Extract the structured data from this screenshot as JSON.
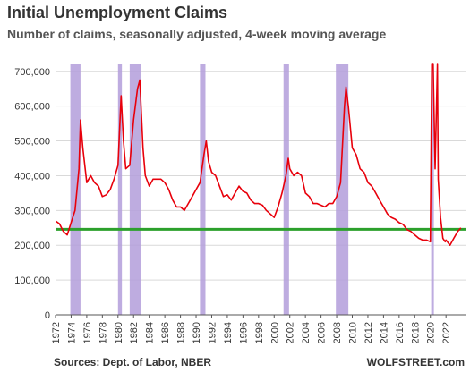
{
  "chart_data": {
    "type": "line",
    "title": "Initial Unemployment Claims",
    "subtitle": "Number of claims, seasonally adjusted, 4-week moving average",
    "source": "Sources: Dept. of Labor, NBER",
    "brand": "WOLFSTREET.com",
    "ylim": [
      0,
      720000
    ],
    "xlim": [
      1972,
      2024.5
    ],
    "y_ticks": [
      0,
      100000,
      200000,
      300000,
      400000,
      500000,
      600000,
      700000
    ],
    "y_tick_labels": [
      "0",
      "100,000",
      "200,000",
      "300,000",
      "400,000",
      "500,000",
      "600,000",
      "700,000"
    ],
    "x_ticks": [
      1972,
      1974,
      1976,
      1978,
      1980,
      1982,
      1984,
      1986,
      1988,
      1990,
      1992,
      1994,
      1996,
      1998,
      2000,
      2002,
      2004,
      2006,
      2008,
      2010,
      2012,
      2014,
      2016,
      2018,
      2020,
      2022
    ],
    "grid": true,
    "colors": {
      "series": "#e8000b",
      "reference": "#2ca02c",
      "recession": "#b39ddb",
      "grid": "#d9d9d9",
      "axis": "#555555"
    },
    "recessions": [
      [
        1973.9,
        1975.2
      ],
      [
        1980.0,
        1980.5
      ],
      [
        1981.5,
        1982.9
      ],
      [
        1990.5,
        1991.2
      ],
      [
        2001.2,
        2001.9
      ],
      [
        2007.9,
        2009.5
      ],
      [
        2020.1,
        2020.3
      ]
    ],
    "reference_line": {
      "y": 246000
    },
    "series": [
      {
        "x": [
          1972,
          1972.5,
          1973,
          1973.5,
          1974,
          1974.5,
          1975,
          1975.2,
          1975.5,
          1976,
          1976.5,
          1977,
          1977.5,
          1978,
          1978.5,
          1979,
          1979.5,
          1980,
          1980.4,
          1980.7,
          1981,
          1981.5,
          1982,
          1982.5,
          1982.8,
          1983.2,
          1983.5,
          1984,
          1984.5,
          1985,
          1985.5,
          1986,
          1986.5,
          1987,
          1987.5,
          1988,
          1988.5,
          1989,
          1989.5,
          1990,
          1990.5,
          1991,
          1991.3,
          1991.6,
          1992,
          1992.5,
          1993,
          1993.5,
          1994,
          1994.5,
          1995,
          1995.5,
          1996,
          1996.5,
          1997,
          1997.5,
          1998,
          1998.5,
          1999,
          1999.5,
          2000,
          2000.5,
          2001,
          2001.5,
          2001.8,
          2002,
          2002.5,
          2003,
          2003.5,
          2004,
          2004.5,
          2005,
          2005.5,
          2006,
          2006.5,
          2007,
          2007.5,
          2008,
          2008.5,
          2009,
          2009.2,
          2009.5,
          2010,
          2010.5,
          2011,
          2011.5,
          2012,
          2012.5,
          2013,
          2013.5,
          2014,
          2014.5,
          2015,
          2015.5,
          2016,
          2016.5,
          2017,
          2017.5,
          2018,
          2018.5,
          2019,
          2019.5,
          2020,
          2020.18,
          2020.22,
          2020.35,
          2020.6,
          2020.9,
          2021,
          2021.3,
          2021.6,
          2021.9,
          2022,
          2022.5,
          2023,
          2023.5,
          2023.9
        ],
        "y": [
          270000,
          262000,
          240000,
          230000,
          265000,
          300000,
          420000,
          560000,
          480000,
          380000,
          400000,
          380000,
          370000,
          340000,
          345000,
          360000,
          390000,
          430000,
          630000,
          500000,
          420000,
          430000,
          560000,
          650000,
          675000,
          480000,
          400000,
          370000,
          390000,
          390000,
          390000,
          380000,
          360000,
          330000,
          310000,
          310000,
          300000,
          320000,
          340000,
          360000,
          380000,
          460000,
          500000,
          440000,
          410000,
          400000,
          370000,
          340000,
          345000,
          330000,
          350000,
          370000,
          355000,
          350000,
          330000,
          320000,
          320000,
          315000,
          300000,
          290000,
          280000,
          310000,
          350000,
          400000,
          450000,
          420000,
          400000,
          410000,
          400000,
          350000,
          340000,
          320000,
          320000,
          315000,
          310000,
          320000,
          320000,
          340000,
          380000,
          600000,
          655000,
          600000,
          480000,
          460000,
          420000,
          410000,
          380000,
          370000,
          350000,
          330000,
          310000,
          290000,
          280000,
          275000,
          265000,
          260000,
          245000,
          240000,
          230000,
          220000,
          215000,
          215000,
          210000,
          720000,
          720000,
          720000,
          420000,
          720000,
          390000,
          280000,
          220000,
          210000,
          215000,
          200000,
          220000,
          240000,
          250000
        ]
      }
    ]
  }
}
